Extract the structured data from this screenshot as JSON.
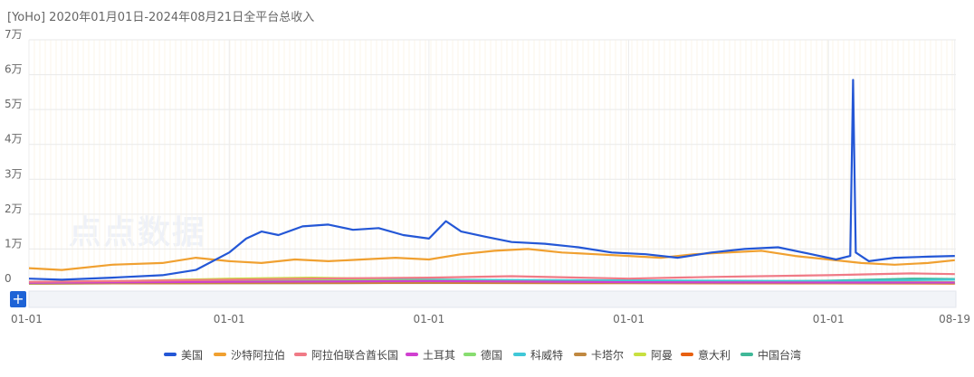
{
  "header": {
    "title": "[YoHo]  2020年01月01日-2024年08月21日全平台总收入"
  },
  "watermark": {
    "text": "点点数据"
  },
  "zoom": {
    "label": "+"
  },
  "chart_data": {
    "type": "line",
    "title": "[YoHo]  2020年01月01日-2024年08月21日全平台总收入",
    "xlabel": "",
    "ylabel": "",
    "ylim": [
      0,
      70000
    ],
    "x_range": [
      "2020-01-01",
      "2024-08-21"
    ],
    "x_tick_labels": [
      "01-01",
      "01-01",
      "01-01",
      "01-01",
      "01-01",
      "08-19"
    ],
    "x_tick_dates": [
      "2020-01-01",
      "2021-01-01",
      "2022-01-01",
      "2023-01-01",
      "2024-01-01",
      "2024-08-19"
    ],
    "y_tick_values": [
      0,
      10000,
      20000,
      30000,
      40000,
      50000,
      60000,
      70000
    ],
    "y_tick_labels": [
      "0",
      "1万",
      "2万",
      "3万",
      "4万",
      "5万",
      "6万",
      "7万"
    ],
    "grid": true,
    "legend_position": "bottom",
    "series": [
      {
        "name": "美国",
        "color": "#2457d6",
        "points": [
          [
            "2020-01-01",
            1500
          ],
          [
            "2020-03-01",
            1200
          ],
          [
            "2020-06-01",
            1800
          ],
          [
            "2020-09-01",
            2500
          ],
          [
            "2020-11-01",
            4000
          ],
          [
            "2021-01-01",
            9000
          ],
          [
            "2021-02-01",
            13000
          ],
          [
            "2021-03-01",
            15000
          ],
          [
            "2021-04-01",
            14000
          ],
          [
            "2021-05-15",
            16500
          ],
          [
            "2021-07-01",
            17000
          ],
          [
            "2021-08-15",
            15500
          ],
          [
            "2021-10-01",
            16000
          ],
          [
            "2021-11-15",
            14000
          ],
          [
            "2022-01-01",
            13000
          ],
          [
            "2022-02-01",
            18000
          ],
          [
            "2022-03-01",
            15000
          ],
          [
            "2022-04-15",
            13500
          ],
          [
            "2022-06-01",
            12000
          ],
          [
            "2022-08-01",
            11500
          ],
          [
            "2022-10-01",
            10500
          ],
          [
            "2022-12-01",
            9000
          ],
          [
            "2023-02-01",
            8500
          ],
          [
            "2023-04-01",
            7500
          ],
          [
            "2023-06-01",
            9000
          ],
          [
            "2023-08-01",
            10000
          ],
          [
            "2023-10-01",
            10500
          ],
          [
            "2023-12-01",
            8500
          ],
          [
            "2024-01-15",
            7000
          ],
          [
            "2024-02-10",
            8000
          ],
          [
            "2024-02-15",
            58500
          ],
          [
            "2024-02-20",
            9000
          ],
          [
            "2024-03-15",
            6500
          ],
          [
            "2024-05-01",
            7500
          ],
          [
            "2024-07-01",
            7800
          ],
          [
            "2024-08-19",
            8000
          ]
        ]
      },
      {
        "name": "沙特阿拉伯",
        "color": "#f0a030",
        "points": [
          [
            "2020-01-01",
            4500
          ],
          [
            "2020-03-01",
            4000
          ],
          [
            "2020-06-01",
            5500
          ],
          [
            "2020-09-01",
            6000
          ],
          [
            "2020-11-01",
            7500
          ],
          [
            "2021-01-01",
            6500
          ],
          [
            "2021-03-01",
            6000
          ],
          [
            "2021-05-01",
            7000
          ],
          [
            "2021-07-01",
            6500
          ],
          [
            "2021-09-01",
            7000
          ],
          [
            "2021-11-01",
            7500
          ],
          [
            "2022-01-01",
            7000
          ],
          [
            "2022-03-01",
            8500
          ],
          [
            "2022-05-01",
            9500
          ],
          [
            "2022-07-01",
            10000
          ],
          [
            "2022-09-01",
            9000
          ],
          [
            "2022-11-01",
            8500
          ],
          [
            "2023-01-01",
            8000
          ],
          [
            "2023-03-01",
            7500
          ],
          [
            "2023-05-01",
            8500
          ],
          [
            "2023-07-01",
            9000
          ],
          [
            "2023-09-01",
            9500
          ],
          [
            "2023-11-01",
            8000
          ],
          [
            "2024-01-01",
            7000
          ],
          [
            "2024-03-01",
            6000
          ],
          [
            "2024-05-01",
            5500
          ],
          [
            "2024-07-01",
            6000
          ],
          [
            "2024-08-19",
            6800
          ]
        ]
      },
      {
        "name": "阿拉伯联合酋长国",
        "color": "#f07a86",
        "points": [
          [
            "2020-01-01",
            600
          ],
          [
            "2020-06-01",
            800
          ],
          [
            "2021-01-01",
            1200
          ],
          [
            "2021-06-01",
            1500
          ],
          [
            "2022-01-01",
            1800
          ],
          [
            "2022-06-01",
            2200
          ],
          [
            "2023-01-01",
            1500
          ],
          [
            "2023-06-01",
            2000
          ],
          [
            "2024-01-01",
            2500
          ],
          [
            "2024-06-01",
            3000
          ],
          [
            "2024-08-19",
            2800
          ]
        ]
      },
      {
        "name": "土耳其",
        "color": "#d040d0",
        "points": [
          [
            "2020-01-01",
            300
          ],
          [
            "2021-01-01",
            600
          ],
          [
            "2022-01-01",
            800
          ],
          [
            "2023-01-01",
            500
          ],
          [
            "2024-01-01",
            400
          ],
          [
            "2024-08-19",
            400
          ]
        ]
      },
      {
        "name": "德国",
        "color": "#88dd70",
        "points": [
          [
            "2020-01-01",
            200
          ],
          [
            "2021-01-01",
            1000
          ],
          [
            "2021-06-01",
            1200
          ],
          [
            "2022-01-01",
            900
          ],
          [
            "2023-01-01",
            500
          ],
          [
            "2024-01-01",
            400
          ],
          [
            "2024-08-19",
            400
          ]
        ]
      },
      {
        "name": "科威特",
        "color": "#40c8d8",
        "points": [
          [
            "2020-01-01",
            300
          ],
          [
            "2021-01-01",
            800
          ],
          [
            "2022-01-01",
            1200
          ],
          [
            "2023-01-01",
            1000
          ],
          [
            "2024-01-01",
            800
          ],
          [
            "2024-08-19",
            1200
          ]
        ]
      },
      {
        "name": "卡塔尔",
        "color": "#c08840",
        "points": [
          [
            "2020-01-01",
            100
          ],
          [
            "2021-01-01",
            300
          ],
          [
            "2022-01-01",
            400
          ],
          [
            "2023-01-01",
            300
          ],
          [
            "2024-01-01",
            200
          ],
          [
            "2024-08-19",
            200
          ]
        ]
      },
      {
        "name": "阿曼",
        "color": "#c8e040",
        "points": [
          [
            "2020-01-01",
            200
          ],
          [
            "2021-01-01",
            1500
          ],
          [
            "2021-06-01",
            1800
          ],
          [
            "2022-01-01",
            1200
          ],
          [
            "2023-01-01",
            800
          ],
          [
            "2024-01-01",
            600
          ],
          [
            "2024-08-19",
            500
          ]
        ]
      },
      {
        "name": "意大利",
        "color": "#e86010",
        "points": [
          [
            "2020-01-01",
            100
          ],
          [
            "2021-01-01",
            200
          ],
          [
            "2022-01-01",
            300
          ],
          [
            "2023-01-01",
            200
          ],
          [
            "2024-01-01",
            150
          ],
          [
            "2024-08-19",
            100
          ]
        ]
      },
      {
        "name": "中国台湾",
        "color": "#40b898",
        "points": [
          [
            "2020-01-01",
            100
          ],
          [
            "2021-01-01",
            200
          ],
          [
            "2022-01-01",
            300
          ],
          [
            "2023-01-01",
            400
          ],
          [
            "2024-01-01",
            900
          ],
          [
            "2024-06-01",
            1500
          ],
          [
            "2024-08-19",
            1400
          ]
        ]
      }
    ]
  }
}
